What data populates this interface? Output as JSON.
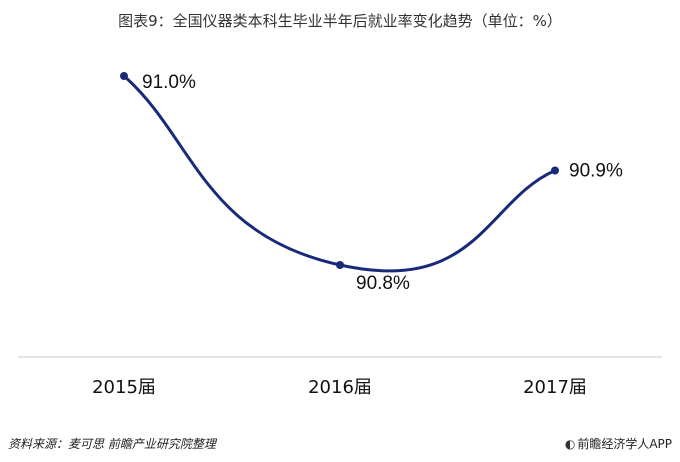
{
  "chart_data": {
    "type": "line",
    "title": "图表9：全国仪器类本科生毕业半年后就业率变化趋势（单位：%）",
    "categories": [
      "2015届",
      "2016届",
      "2017届"
    ],
    "series": [
      {
        "values": [
          91.0,
          90.8,
          90.9
        ],
        "labels": [
          "91.0%",
          "90.8%",
          "90.9%"
        ]
      }
    ],
    "xlabel": "",
    "ylabel": "",
    "grid": false,
    "line_color": "#1a2a7a"
  },
  "footer": {
    "source": "资料来源：麦可思 前瞻产业研究院整理",
    "brand": "前瞻经济学人APP"
  }
}
